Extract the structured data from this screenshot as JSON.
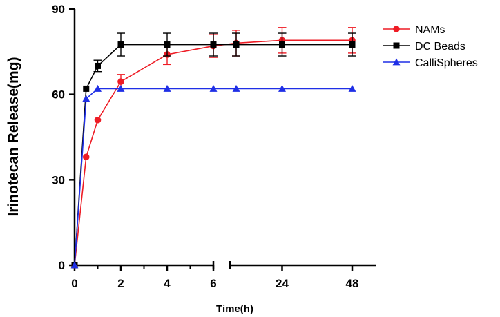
{
  "chart_data": {
    "type": "line",
    "title": "",
    "xlabel": "Time(h)",
    "ylabel": "Irinotecan Release(mg)",
    "ylim": [
      0,
      90
    ],
    "yticks": [
      0,
      30,
      60,
      90
    ],
    "xticks": [
      "0",
      "2",
      "4",
      "6",
      "24",
      "48"
    ],
    "x_axis_break": "between 6 and 24",
    "legend_position": "top-right",
    "grid": false,
    "series": [
      {
        "name": "NAMs",
        "color": "#ee1c25",
        "marker": "circle",
        "x": [
          "0",
          "0.5",
          "1",
          "2",
          "4",
          "6",
          "8",
          "24",
          "48"
        ],
        "values": [
          0,
          38,
          51,
          64.5,
          74,
          77,
          78,
          79,
          79
        ],
        "errors": [
          0,
          0,
          0,
          2.5,
          3.5,
          4,
          4.5,
          4.5,
          4.5
        ]
      },
      {
        "name": "DC Beads",
        "color": "#000000",
        "marker": "square",
        "x": [
          "0",
          "0.5",
          "1",
          "2",
          "4",
          "6",
          "8",
          "24",
          "48"
        ],
        "values": [
          0,
          62,
          70,
          77.5,
          77.5,
          77.5,
          77.5,
          77.5,
          77.5
        ],
        "errors": [
          0,
          0,
          2,
          4,
          4,
          4,
          4,
          4,
          4
        ]
      },
      {
        "name": "CalliSpheres",
        "color": "#1f2fe6",
        "marker": "triangle",
        "x": [
          "0",
          "0.5",
          "1",
          "2",
          "4",
          "6",
          "8",
          "24",
          "48"
        ],
        "values": [
          0,
          58.5,
          62,
          62,
          62,
          62,
          62,
          62,
          62
        ],
        "errors": [
          0,
          0,
          0,
          0,
          0,
          0,
          0,
          0,
          0
        ]
      }
    ]
  }
}
